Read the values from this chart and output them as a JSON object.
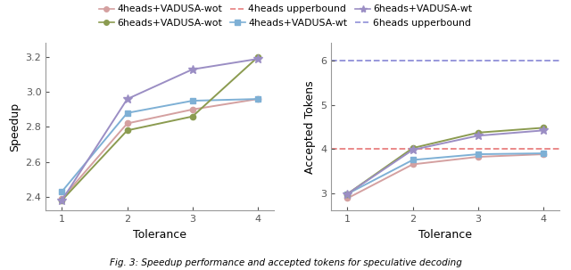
{
  "x": [
    1,
    2,
    3,
    4
  ],
  "speedup": {
    "4heads_wot": [
      2.39,
      2.82,
      2.9,
      2.96
    ],
    "4heads_wt": [
      2.43,
      2.88,
      2.95,
      2.96
    ],
    "6heads_wot": [
      2.38,
      2.78,
      2.86,
      3.2
    ],
    "6heads_wt": [
      2.38,
      2.96,
      3.13,
      3.19
    ]
  },
  "accepted": {
    "4heads_wot": [
      2.88,
      3.65,
      3.82,
      3.88
    ],
    "4heads_wt": [
      2.98,
      3.75,
      3.88,
      3.9
    ],
    "6heads_wot": [
      2.98,
      4.02,
      4.37,
      4.48
    ],
    "6heads_wt": [
      2.98,
      3.98,
      4.3,
      4.42
    ]
  },
  "upperbound_4heads": 4.0,
  "upperbound_6heads": 6.0,
  "colors": {
    "4heads_wot": "#D4A0A0",
    "4heads_wt": "#7EB0D5",
    "6heads_wot": "#8B9B50",
    "6heads_wt": "#9B8EC4"
  },
  "ub_colors": {
    "ub4": "#E88080",
    "ub6": "#9090D8"
  },
  "legend_labels": {
    "4heads_wot": "4heads+VADUSA-wot",
    "4heads_wt": "4heads+VADUSA-wt",
    "6heads_wot": "6heads+VADUSA-wot",
    "6heads_wt": "6heads+VADUSA-wt",
    "ub4": "4heads upperbound",
    "ub6": "6heads upperbound"
  },
  "markers": {
    "4heads_wot": "o",
    "4heads_wt": "s",
    "6heads_wot": "o",
    "6heads_wt": "*"
  },
  "ylim_speedup": [
    2.32,
    3.28
  ],
  "ylim_accepted": [
    2.6,
    6.4
  ],
  "yticks_speedup": [
    2.4,
    2.6,
    2.8,
    3.0,
    3.2
  ],
  "yticks_accepted": [
    3,
    4,
    5,
    6
  ],
  "xlabel": "Tolerance",
  "ylabel_left": "Speedup",
  "ylabel_right": "Accepted Tokens",
  "caption": "Fig. 3: Speedup performance and accepted tokens for specu..."
}
